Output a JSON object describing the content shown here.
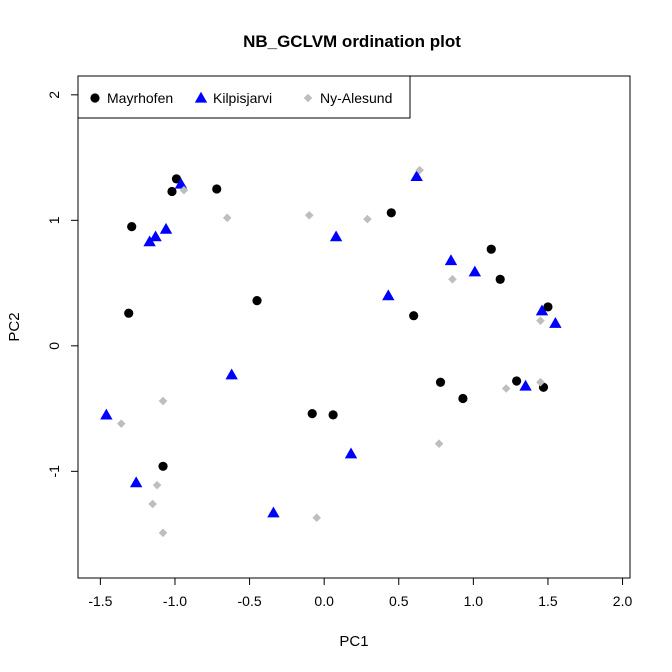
{
  "chart_data": {
    "type": "scatter",
    "title": "NB_GCLVM ordination plot",
    "xlabel": "PC1",
    "ylabel": "PC2",
    "xlim": [
      -1.65,
      2.05
    ],
    "ylim": [
      -1.85,
      2.15
    ],
    "xticks": [
      -1.5,
      -1.0,
      -0.5,
      0.0,
      0.5,
      1.0,
      1.5,
      2.0
    ],
    "xtick_labels": [
      "-1.5",
      "-1.0",
      "-0.5",
      "0.0",
      "0.5",
      "1.0",
      "1.5",
      "2.0"
    ],
    "yticks": [
      -1,
      0,
      1,
      2
    ],
    "ytick_labels": [
      "-1",
      "0",
      "1",
      "2"
    ],
    "grid": false,
    "legend_position": "top-left",
    "series": [
      {
        "name": "Mayrhofen",
        "color": "#000000",
        "marker": "circle",
        "points": [
          [
            -0.99,
            1.33
          ],
          [
            -1.02,
            1.23
          ],
          [
            -0.72,
            1.25
          ],
          [
            -1.29,
            0.95
          ],
          [
            -1.31,
            0.26
          ],
          [
            -0.45,
            0.36
          ],
          [
            -1.08,
            -0.96
          ],
          [
            -0.08,
            -0.54
          ],
          [
            0.06,
            -0.55
          ],
          [
            0.45,
            1.06
          ],
          [
            0.6,
            0.24
          ],
          [
            0.78,
            -0.29
          ],
          [
            0.93,
            -0.42
          ],
          [
            1.12,
            0.77
          ],
          [
            1.18,
            0.53
          ],
          [
            1.29,
            -0.28
          ],
          [
            1.47,
            -0.33
          ],
          [
            1.5,
            0.31
          ]
        ]
      },
      {
        "name": "Kilpisjarvi",
        "color": "#0000ff",
        "marker": "triangle",
        "points": [
          [
            -0.96,
            1.29
          ],
          [
            -1.17,
            0.83
          ],
          [
            -1.13,
            0.87
          ],
          [
            -1.06,
            0.93
          ],
          [
            -0.62,
            -0.23
          ],
          [
            -1.46,
            -0.55
          ],
          [
            -1.26,
            -1.09
          ],
          [
            -0.34,
            -1.33
          ],
          [
            0.08,
            0.87
          ],
          [
            0.18,
            -0.86
          ],
          [
            0.43,
            0.4
          ],
          [
            0.62,
            1.35
          ],
          [
            0.85,
            0.68
          ],
          [
            1.01,
            0.59
          ],
          [
            1.35,
            -0.32
          ],
          [
            1.46,
            0.28
          ],
          [
            1.55,
            0.18
          ]
        ]
      },
      {
        "name": "Ny-Alesund",
        "color": "#bebebe",
        "marker": "diamond",
        "points": [
          [
            -0.94,
            1.24
          ],
          [
            -0.65,
            1.02
          ],
          [
            -0.1,
            1.04
          ],
          [
            0.29,
            1.01
          ],
          [
            0.64,
            1.4
          ],
          [
            0.86,
            0.53
          ],
          [
            -1.08,
            -0.44
          ],
          [
            -1.36,
            -0.62
          ],
          [
            -1.12,
            -1.11
          ],
          [
            -1.15,
            -1.26
          ],
          [
            -1.08,
            -1.49
          ],
          [
            -0.05,
            -1.37
          ],
          [
            0.77,
            -0.78
          ],
          [
            1.22,
            -0.34
          ],
          [
            1.45,
            -0.29
          ],
          [
            1.45,
            0.2
          ]
        ]
      }
    ]
  }
}
